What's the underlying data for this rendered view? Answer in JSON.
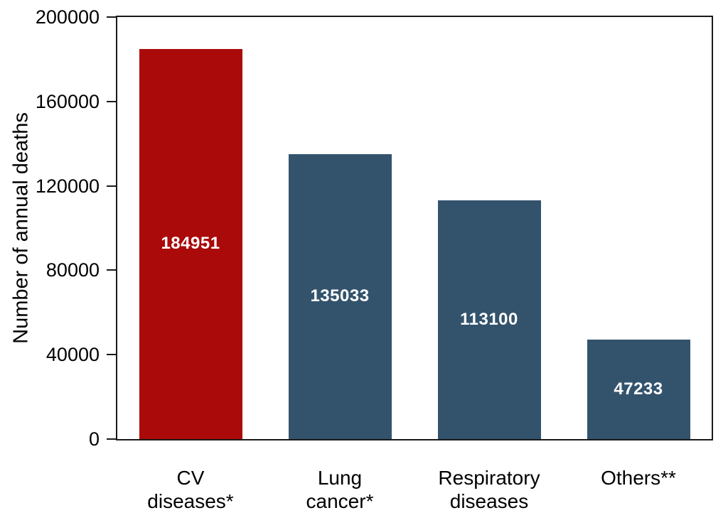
{
  "chart_data": {
    "type": "bar",
    "title": "",
    "xlabel": "",
    "ylabel": "Number of annual deaths",
    "categories": [
      "CV diseases*",
      "Lung cancer*",
      "Respiratory diseases",
      "Others**"
    ],
    "category_lines": [
      [
        "CV",
        "diseases*"
      ],
      [
        "Lung",
        "cancer*"
      ],
      [
        "Respiratory",
        "diseases"
      ],
      [
        "Others**"
      ]
    ],
    "values": [
      184951,
      135033,
      113100,
      47233
    ],
    "value_labels": [
      "184951",
      "135033",
      "113100",
      "47233"
    ],
    "bar_colors": [
      "#AA0A0A",
      "#33536D",
      "#33536D",
      "#33536D"
    ],
    "value_label_color": "#FFFFFF",
    "ylim": [
      0,
      200000
    ],
    "yticks": [
      0,
      40000,
      80000,
      120000,
      160000,
      200000
    ],
    "ytick_labels": [
      "0",
      "40000",
      "80000",
      "120000",
      "160000",
      "200000"
    ],
    "grid": false,
    "legend_position": "none",
    "plot_border": true,
    "axis_color": "#1a1a1a",
    "background_color": "#FFFFFF"
  }
}
